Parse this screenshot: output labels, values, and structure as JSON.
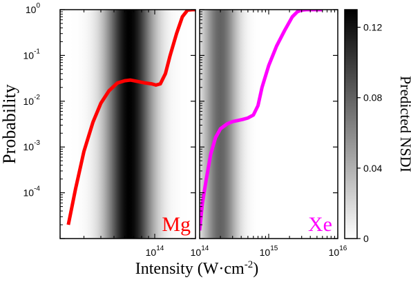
{
  "chart_data": {
    "type": "line",
    "ylabel": "Probability",
    "xlabel_main": "Intensity (W·cm",
    "xlabel_exp": "-2",
    "xlabel_tail": ")",
    "yscale": "log",
    "xscale": "log",
    "ylim": [
      1e-05,
      1
    ],
    "y_ticks": [
      {
        "base": "10",
        "exp": "0",
        "value": 1
      },
      {
        "base": "10",
        "exp": "-1",
        "value": 0.1
      },
      {
        "base": "10",
        "exp": "-2",
        "value": 0.01
      },
      {
        "base": "10",
        "exp": "-3",
        "value": 0.001
      },
      {
        "base": "10",
        "exp": "-4",
        "value": 0.0001
      }
    ],
    "panels": [
      {
        "label": "Mg",
        "color": "#ff0000",
        "xlim": [
          20000000000000.0,
          200000000000000.0
        ],
        "x_ticks": [
          {
            "base": "10",
            "exp": "14",
            "value": 100000000000000.0
          }
        ],
        "nsdi_band": {
          "center": 65000000000000.0,
          "sigma_log10": 0.12,
          "peak": 0.13
        },
        "series": {
          "x": [
            23000000000000.0,
            26000000000000.0,
            30000000000000.0,
            35000000000000.0,
            40000000000000.0,
            46000000000000.0,
            53000000000000.0,
            60000000000000.0,
            66000000000000.0,
            75000000000000.0,
            85000000000000.0,
            95000000000000.0,
            102000000000000.0,
            110000000000000.0,
            120000000000000.0,
            130000000000000.0,
            145000000000000.0,
            160000000000000.0,
            175000000000000.0,
            190000000000000.0,
            200000000000000.0
          ],
          "y": [
            2e-05,
            0.00012,
            0.0008,
            0.0035,
            0.009,
            0.017,
            0.025,
            0.028,
            0.029,
            0.027,
            0.025,
            0.024,
            0.0225,
            0.024,
            0.04,
            0.1,
            0.3,
            0.7,
            0.98,
            1.0,
            1.0
          ]
        }
      },
      {
        "label": "Xe",
        "color": "#ff00ff",
        "xlim": [
          100000000000000.0,
          1e+16
        ],
        "x_ticks": [
          {
            "base": "10",
            "exp": "14",
            "value": 100000000000000.0
          },
          {
            "base": "10",
            "exp": "15",
            "value": 1000000000000000.0
          },
          {
            "base": "10",
            "exp": "16",
            "value": 1e+16
          }
        ],
        "nsdi_band": {
          "center": 200000000000000.0,
          "sigma_log10": 0.17,
          "peak": 0.08
        },
        "series": {
          "x": [
            100000000000000.0,
            110000000000000.0,
            125000000000000.0,
            145000000000000.0,
            170000000000000.0,
            200000000000000.0,
            250000000000000.0,
            300000000000000.0,
            360000000000000.0,
            420000000000000.0,
            500000000000000.0,
            600000000000000.0,
            700000000000000.0,
            800000000000000.0,
            1000000000000000.0,
            1300000000000000.0,
            1700000000000000.0,
            2200000000000000.0,
            2600000000000000.0,
            3000000000000000.0,
            3500000000000000.0,
            4500000000000000.0,
            6000000000000000.0
          ],
          "y": [
            1.5e-05,
            6e-05,
            0.0002,
            0.0007,
            0.0016,
            0.0025,
            0.0032,
            0.0036,
            0.0038,
            0.004,
            0.0043,
            0.005,
            0.008,
            0.02,
            0.06,
            0.16,
            0.35,
            0.7,
            0.9,
            0.98,
            1.0,
            1.0,
            1.0
          ]
        }
      }
    ],
    "colorbar": {
      "label": "Predicted NSDI",
      "range": [
        0,
        0.13
      ],
      "ticks": [
        {
          "label": "0.12",
          "value": 0.12
        },
        {
          "label": "0.08",
          "value": 0.08
        },
        {
          "label": "0.04",
          "value": 0.04
        },
        {
          "label": "0",
          "value": 0
        }
      ]
    },
    "grid": false,
    "legend": "none"
  }
}
